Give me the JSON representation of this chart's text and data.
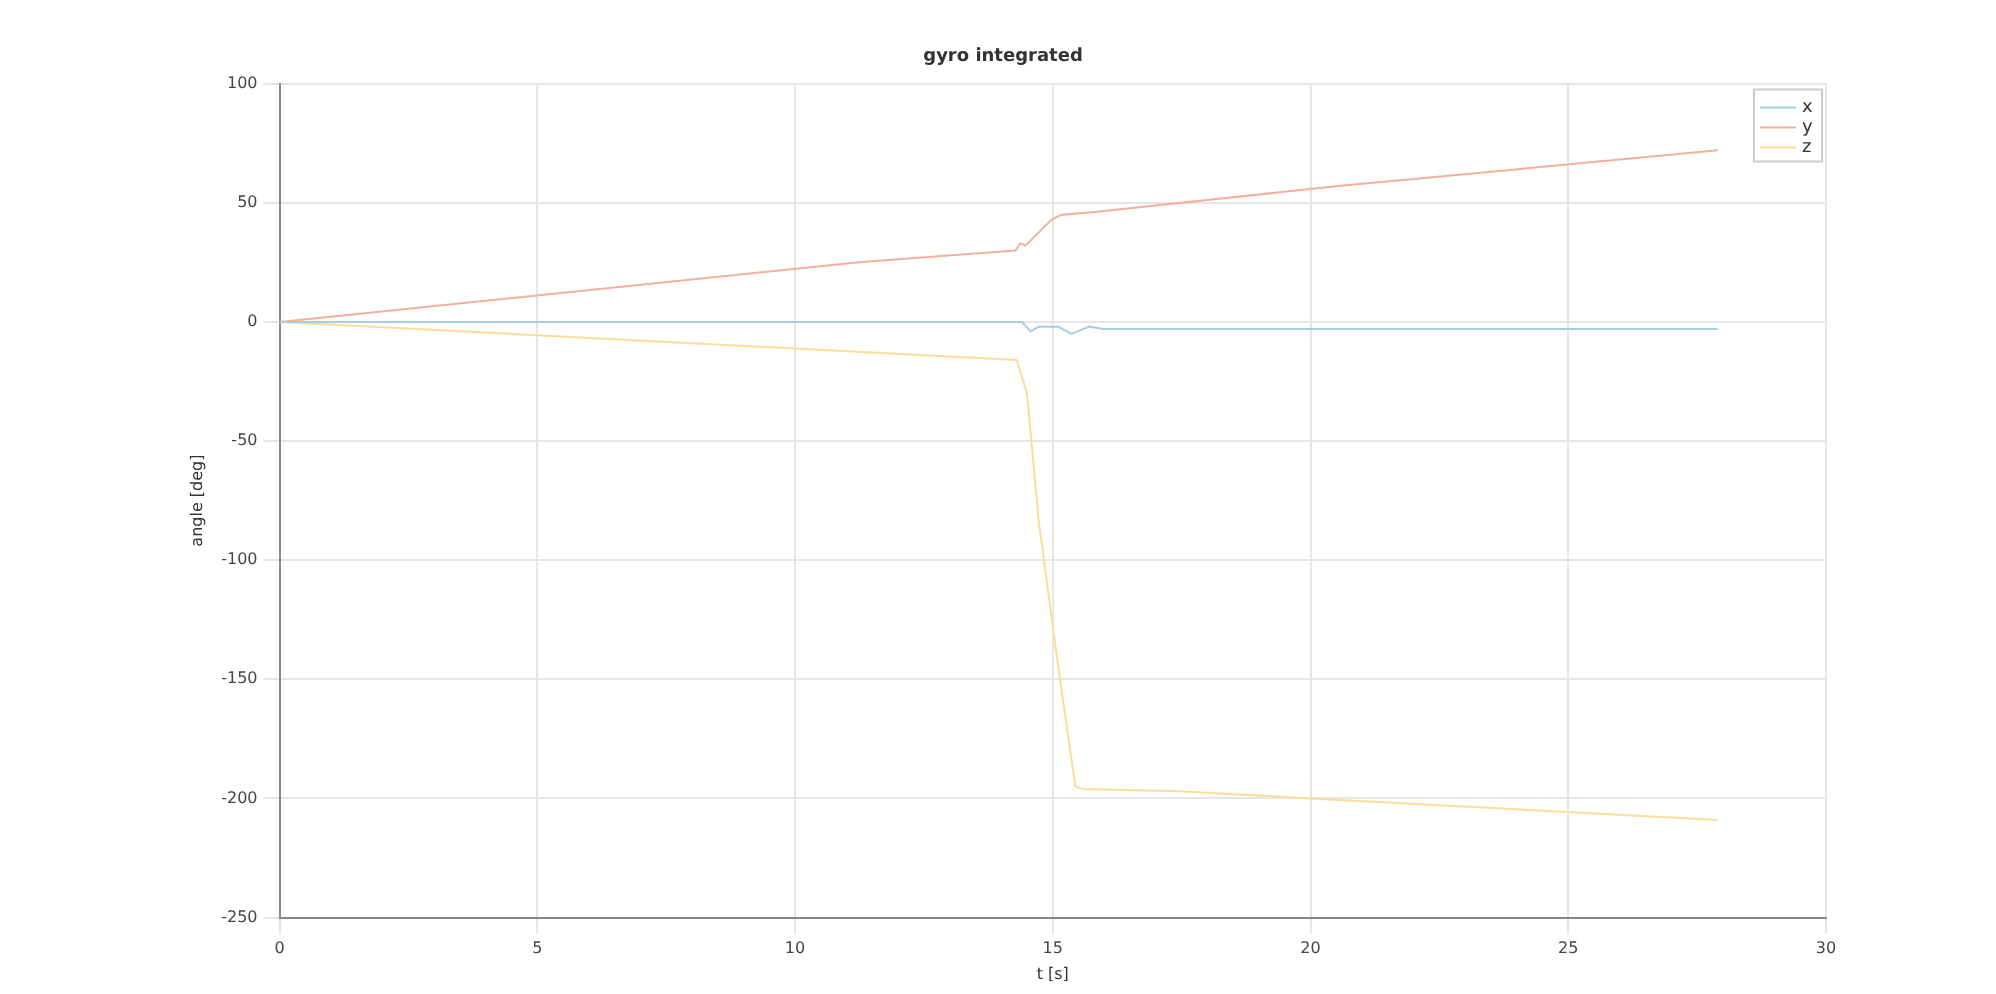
{
  "chart_data": {
    "type": "line",
    "title": "gyro integrated",
    "xlabel": "t [s]",
    "ylabel": "angle [deg]",
    "xlim": [
      0,
      30
    ],
    "xticks": [
      0,
      5,
      10,
      15,
      20,
      25,
      30
    ],
    "ylim": [
      -250,
      100
    ],
    "yticks": [
      -250,
      -200,
      -150,
      -100,
      -50,
      0,
      50,
      100
    ],
    "grid": true,
    "legend": "top right",
    "marker": "none",
    "line_style": "solid",
    "series": [
      {
        "name": "x",
        "color": "#a6cee3",
        "x": [
          0,
          14.4,
          14.57,
          14.73,
          15.1,
          15.37,
          15.7,
          16,
          20,
          27.9
        ],
        "values": [
          0,
          0,
          -4,
          -2,
          -2,
          -5,
          -2,
          -3,
          -3,
          -3
        ]
      },
      {
        "name": "y",
        "color": "#f4b09a",
        "x": [
          0,
          11.24,
          14.28,
          14.37,
          14.47,
          14.98,
          15.18,
          15.76,
          20.54,
          27.9
        ],
        "values": [
          0,
          25,
          30,
          33,
          32,
          43,
          45,
          46,
          57,
          72
        ]
      },
      {
        "name": "z",
        "color": "#fddc9a",
        "x": [
          0,
          14.3,
          14.5,
          14.73,
          15.12,
          15.44,
          15.57,
          17.44,
          20,
          27.9
        ],
        "values": [
          0,
          -16,
          -30,
          -84,
          -147,
          -195,
          -196,
          -197,
          -200,
          -209
        ]
      }
    ]
  }
}
